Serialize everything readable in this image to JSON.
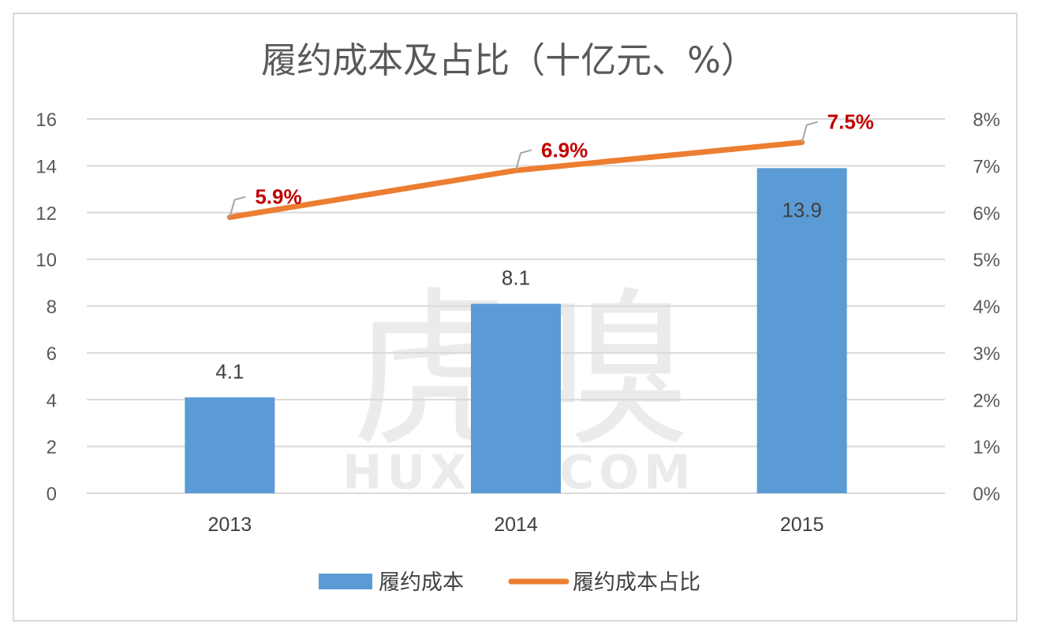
{
  "chart_data": {
    "type": "bar",
    "title": "履约成本及占比（十亿元、%）",
    "categories": [
      "2013",
      "2014",
      "2015"
    ],
    "series": [
      {
        "name": "履约成本",
        "kind": "bar",
        "axis": "left",
        "color": "#5b9bd5",
        "values": [
          4.1,
          8.1,
          13.9
        ],
        "labels": [
          "4.1",
          "8.1",
          "13.9"
        ]
      },
      {
        "name": "履约成本占比",
        "kind": "line",
        "axis": "right",
        "color": "#ed7d31",
        "values": [
          5.9,
          6.9,
          7.5
        ],
        "labels": [
          "5.9%",
          "6.9%",
          "7.5%"
        ]
      }
    ],
    "y_left": {
      "range": [
        0,
        16
      ],
      "ticks": [
        "0",
        "2",
        "4",
        "6",
        "8",
        "10",
        "12",
        "14",
        "16"
      ]
    },
    "y_right": {
      "range": [
        0,
        8
      ],
      "ticks": [
        "0%",
        "1%",
        "2%",
        "3%",
        "4%",
        "5%",
        "6%",
        "7%",
        "8%"
      ]
    },
    "grid": true,
    "legend": "bottom",
    "label_color": "#c00000"
  },
  "watermark": {
    "cn": "虎嗅",
    "en": "HUXIU.COM"
  }
}
